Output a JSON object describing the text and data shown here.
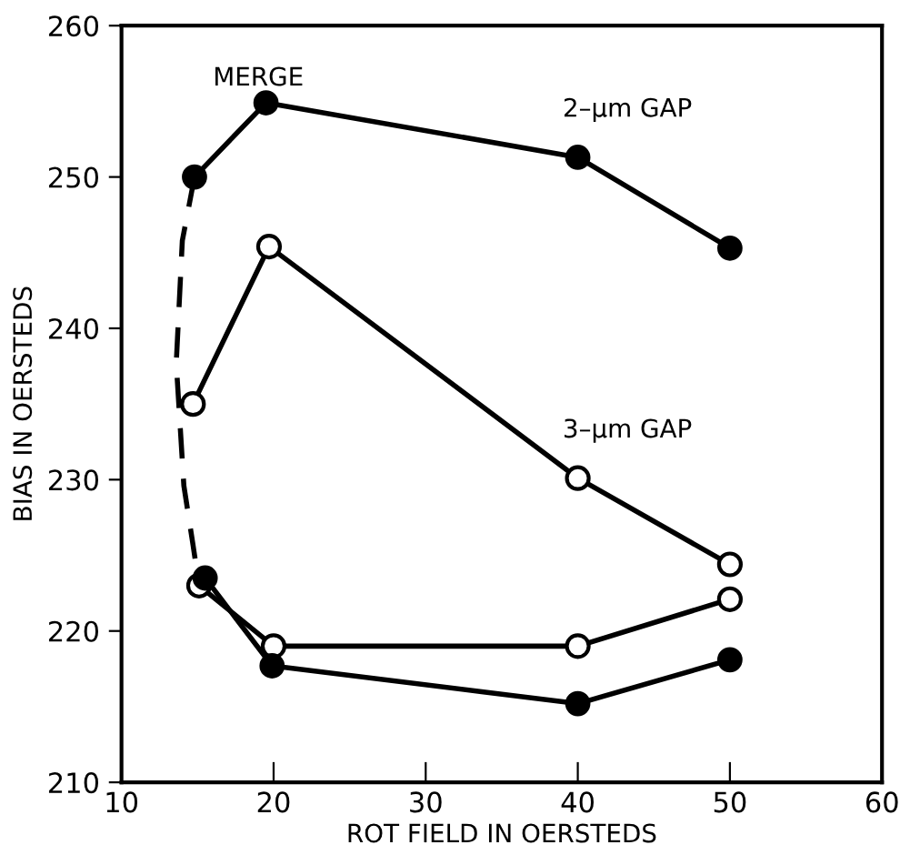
{
  "chart_data": {
    "type": "line",
    "xlabel": "ROT FIELD IN OERSTEDS",
    "ylabel": "BIAS IN OERSTEDS",
    "xlim": [
      10,
      60
    ],
    "xticks": [
      10,
      20,
      30,
      40,
      50,
      60
    ],
    "ylim": [
      210,
      260
    ],
    "yticks": [
      210,
      220,
      230,
      240,
      250,
      260
    ],
    "grid": false,
    "legend": false,
    "marker": "circle",
    "series": [
      {
        "name": "2–μm GAP",
        "color": "#000000",
        "x": [
          14.8,
          19.5,
          40,
          50
        ],
        "values": [
          250,
          254.9,
          251.3,
          245.3
        ]
      },
      {
        "name": "3–μm GAP",
        "color": "#000000",
        "marker": "none",
        "x": [
          14.7,
          19.7,
          40,
          50
        ],
        "values": [
          235,
          245.4,
          230.1,
          224.4
        ]
      },
      {
        "color": "#000000",
        "marker": "none",
        "x": [
          15.1,
          20,
          40,
          50
        ],
        "values": [
          223,
          219,
          219,
          222.1
        ]
      },
      {
        "color": "#000000",
        "x": [
          15.5,
          19.9,
          40,
          50
        ],
        "values": [
          223.5,
          217.7,
          215.2,
          218.1
        ]
      },
      {
        "color": "#000000",
        "marker": "none",
        "line_style": "dashed",
        "x": [
          14.8,
          14,
          13.6,
          14.1,
          14.7,
          15.1
        ],
        "values": [
          250,
          245.8,
          237.7,
          229.6,
          225.7,
          223
        ]
      },
      {
        "type": "scatter",
        "color": "#ffffff",
        "x": [
          14.7,
          19.7,
          40,
          50
        ],
        "values": [
          235,
          245.4,
          230.1,
          224.4
        ]
      },
      {
        "type": "scatter",
        "color": "#ffffff",
        "x": [
          15.1,
          20,
          40,
          50
        ],
        "values": [
          223,
          219,
          219,
          222.1
        ]
      }
    ],
    "annotations": [
      "MERGE"
    ]
  }
}
